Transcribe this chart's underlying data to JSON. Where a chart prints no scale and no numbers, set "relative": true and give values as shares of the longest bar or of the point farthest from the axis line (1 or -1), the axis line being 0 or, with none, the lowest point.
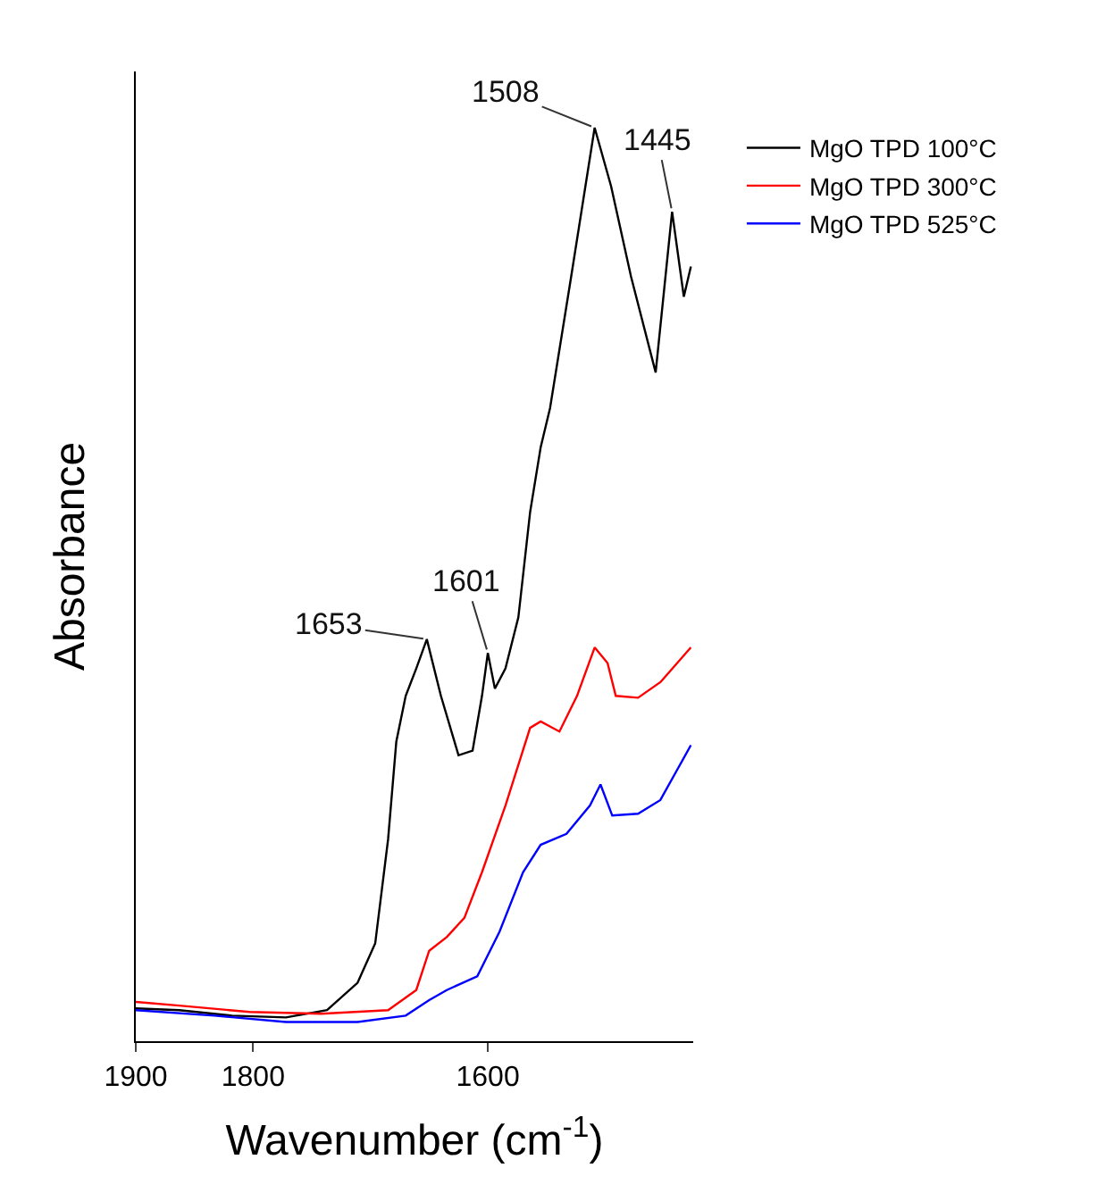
{
  "chart_data": {
    "type": "line",
    "relative": true,
    "xlabel": "Wavenumber (cm$^{-1}$)",
    "ylabel": "Absorbance",
    "xlim": [
      1900,
      1425
    ],
    "xticks": [
      1900,
      1800,
      1600
    ],
    "legend": "top right",
    "grid": false,
    "series": [
      {
        "name": "MgO TPD 100°C",
        "color": "#000000",
        "x": [
          1900,
          1863,
          1818,
          1772,
          1737,
          1711,
          1696,
          1685,
          1678,
          1670,
          1661,
          1652,
          1640,
          1625,
          1613,
          1605,
          1600,
          1594,
          1585,
          1574,
          1564,
          1555,
          1547,
          1529,
          1509,
          1495,
          1478,
          1457,
          1443,
          1433,
          1427
        ],
        "values": [
          0.036,
          0.034,
          0.028,
          0.026,
          0.034,
          0.064,
          0.107,
          0.221,
          0.328,
          0.378,
          0.408,
          0.44,
          0.378,
          0.313,
          0.318,
          0.378,
          0.425,
          0.386,
          0.408,
          0.464,
          0.579,
          0.65,
          0.693,
          0.837,
          1,
          0.936,
          0.837,
          0.732,
          0.908,
          0.815,
          0.848
        ]
      },
      {
        "name": "MgO TPD 300°C",
        "color": "#ff0000",
        "x": [
          1900,
          1863,
          1803,
          1742,
          1685,
          1661,
          1650,
          1635,
          1620,
          1605,
          1585,
          1564,
          1555,
          1539,
          1524,
          1509,
          1498,
          1491,
          1472,
          1453,
          1427
        ],
        "values": [
          0.043,
          0.039,
          0.032,
          0.03,
          0.034,
          0.056,
          0.099,
          0.114,
          0.135,
          0.185,
          0.258,
          0.343,
          0.35,
          0.339,
          0.378,
          0.431,
          0.414,
          0.378,
          0.376,
          0.393,
          0.431
        ]
      },
      {
        "name": "MgO TPD 525°C",
        "color": "#0000ff",
        "x": [
          1900,
          1833,
          1772,
          1711,
          1670,
          1650,
          1635,
          1609,
          1590,
          1570,
          1555,
          1533,
          1513,
          1504,
          1494,
          1472,
          1453,
          1427
        ],
        "values": [
          0.034,
          0.028,
          0.021,
          0.021,
          0.028,
          0.045,
          0.056,
          0.071,
          0.12,
          0.185,
          0.215,
          0.227,
          0.258,
          0.281,
          0.247,
          0.249,
          0.264,
          0.324
        ]
      }
    ],
    "annotations": [
      {
        "text": "1653",
        "x": 1652,
        "y": 0.44
      },
      {
        "text": "1601",
        "x": 1600,
        "y": 0.425
      },
      {
        "text": "1508",
        "x": 1509,
        "y": 1
      },
      {
        "text": "1445",
        "x": 1443,
        "y": 0.908
      }
    ]
  }
}
